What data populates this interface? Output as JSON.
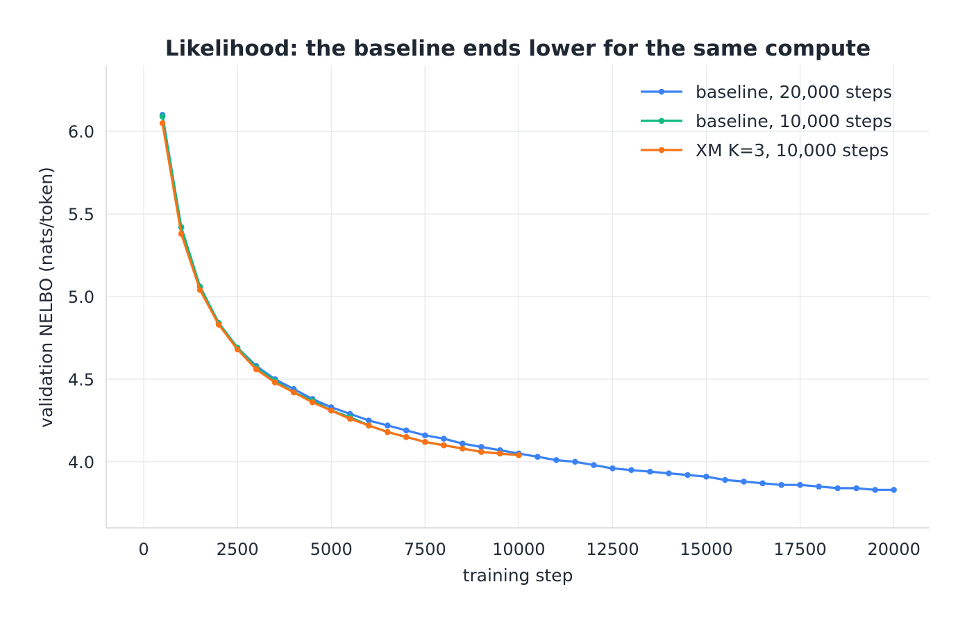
{
  "chart_data": {
    "type": "line",
    "title": "Likelihood: the baseline ends lower for the same compute",
    "xlabel": "training step",
    "ylabel": "validation NELBO (nats/token)",
    "xlim": [
      -1000,
      20950
    ],
    "ylim": [
      3.6,
      6.4
    ],
    "xticks": [
      0,
      2500,
      5000,
      7500,
      10000,
      12500,
      15000,
      17500,
      20000
    ],
    "xtick_labels": [
      "0",
      "2500",
      "5000",
      "7500",
      "10000",
      "12500",
      "15000",
      "17500",
      "20000"
    ],
    "yticks": [
      4.0,
      4.5,
      5.0,
      5.5,
      6.0
    ],
    "ytick_labels": [
      "4.0",
      "4.5",
      "5.0",
      "5.5",
      "6.0"
    ],
    "grid": true,
    "legend_position": "top-right",
    "series": [
      {
        "name": "baseline, 20,000 steps",
        "color": "#3b82f6",
        "x": [
          500,
          1000,
          1500,
          2000,
          2500,
          3000,
          3500,
          4000,
          4500,
          5000,
          5500,
          6000,
          6500,
          7000,
          7500,
          8000,
          8500,
          9000,
          9500,
          10000,
          10500,
          11000,
          11500,
          12000,
          12500,
          13000,
          13500,
          14000,
          14500,
          15000,
          15500,
          16000,
          16500,
          17000,
          17500,
          18000,
          18500,
          19000,
          19500,
          20000
        ],
        "y": [
          6.1,
          5.42,
          5.06,
          4.84,
          4.69,
          4.58,
          4.5,
          4.44,
          4.38,
          4.33,
          4.29,
          4.25,
          4.22,
          4.19,
          4.16,
          4.14,
          4.11,
          4.09,
          4.07,
          4.05,
          4.03,
          4.01,
          4.0,
          3.98,
          3.96,
          3.95,
          3.94,
          3.93,
          3.92,
          3.91,
          3.89,
          3.88,
          3.87,
          3.86,
          3.86,
          3.85,
          3.84,
          3.84,
          3.83,
          3.83
        ]
      },
      {
        "name": "baseline, 10,000 steps",
        "color": "#10b981",
        "x": [
          500,
          1000,
          1500,
          2000,
          2500,
          3000,
          3500,
          4000,
          4500,
          5000,
          5500,
          6000,
          6500,
          7000,
          7500,
          8000,
          8500,
          9000,
          9500,
          10000
        ],
        "y": [
          6.09,
          5.42,
          5.06,
          4.84,
          4.69,
          4.57,
          4.49,
          4.42,
          4.37,
          4.31,
          4.27,
          4.22,
          4.18,
          4.15,
          4.12,
          4.1,
          4.08,
          4.06,
          4.05,
          4.04
        ]
      },
      {
        "name": "XM K=3, 10,000 steps",
        "color": "#f97316",
        "x": [
          500,
          1000,
          1500,
          2000,
          2500,
          3000,
          3500,
          4000,
          4500,
          5000,
          5500,
          6000,
          6500,
          7000,
          7500,
          8000,
          8500,
          9000,
          9500,
          10000
        ],
        "y": [
          6.05,
          5.38,
          5.04,
          4.83,
          4.68,
          4.56,
          4.48,
          4.42,
          4.36,
          4.31,
          4.26,
          4.22,
          4.18,
          4.15,
          4.12,
          4.1,
          4.08,
          4.06,
          4.05,
          4.04
        ]
      }
    ]
  }
}
